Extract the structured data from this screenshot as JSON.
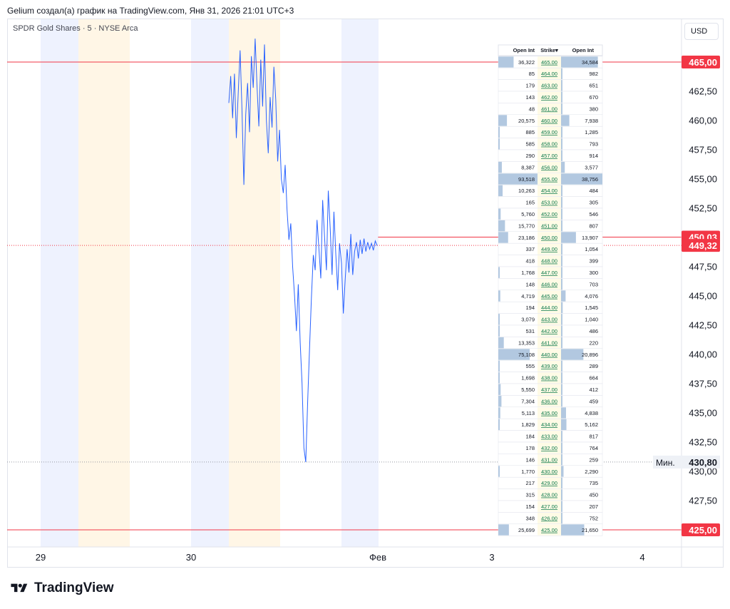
{
  "header": {
    "title": "Gelium создал(а) график на TradingView.com, Янв 31, 2026 21:01 UTC+3",
    "symbol": "SPDR Gold Shares · 5 · NYSE Arca",
    "currency": "USD",
    "logo": "TradingView"
  },
  "colors": {
    "price_line": "#2962ff",
    "level_line": "#f23645",
    "session_blue": "#eef2fe",
    "session_orange": "#fff6e6",
    "table_bar": "#b2c8e0",
    "strike_bg": "#fffbe6",
    "strike_text": "#0b7a4b"
  },
  "chart_data": {
    "type": "line",
    "x_ticks": [
      "29",
      "30",
      "Фев",
      "3",
      "4"
    ],
    "y_ticks": [
      "465,00",
      "462,50",
      "460,00",
      "457,50",
      "455,00",
      "452,50",
      "450,00",
      "447,50",
      "445,00",
      "442,50",
      "440,00",
      "437,50",
      "435,00",
      "432,50",
      "430,00",
      "427,50",
      "425,00"
    ],
    "ylim": [
      424.6,
      467.2
    ],
    "price_labels": [
      {
        "value": 465.0,
        "text": "465,00",
        "style": "red"
      },
      {
        "value": 450.03,
        "text": "450,03",
        "style": "red"
      },
      {
        "value": 449.32,
        "text": "449,32",
        "style": "red"
      },
      {
        "value": 430.8,
        "text": "430,80",
        "style": "min",
        "prefix": "Мин."
      },
      {
        "value": 425.0,
        "text": "425,00",
        "style": "red"
      }
    ],
    "levels": [
      {
        "value": 465.0,
        "style": "solid"
      },
      {
        "value": 450.03,
        "style": "solid",
        "from_x_fraction": 0.55
      },
      {
        "value": 449.32,
        "style": "dotted"
      },
      {
        "value": 430.8,
        "style": "dotted-gray"
      },
      {
        "value": 425.0,
        "style": "solid"
      }
    ],
    "series": [
      {
        "values": [
          461.5,
          463.8,
          460.2,
          464.0,
          458.5,
          462.4,
          466.0,
          461.0,
          454.5,
          460.5,
          463.2,
          459.0,
          465.5,
          462.8,
          467.0,
          463.0,
          459.5,
          465.2,
          461.2,
          466.5,
          460.0,
          457.2,
          462.0,
          459.4,
          464.6,
          461.8,
          456.5,
          459.2,
          455.0,
          453.8,
          456.2,
          452.4,
          449.8,
          451.2,
          447.5,
          445.0,
          442.0,
          446.0,
          441.0,
          437.5,
          432.0,
          430.8,
          436.0,
          440.5,
          444.8,
          448.5,
          447.2,
          451.5,
          449.0,
          446.5,
          453.2,
          450.0,
          447.2,
          454.0,
          450.8,
          446.8,
          452.2,
          448.5,
          445.5,
          449.5,
          447.8,
          443.5,
          446.4,
          449.0,
          447.0,
          450.3,
          446.8,
          448.8,
          449.6,
          448.2,
          449.8,
          448.6,
          449.9,
          448.8,
          449.6,
          449.0,
          449.5,
          448.9,
          449.7,
          449.3
        ]
      }
    ],
    "options_table": {
      "headers": [
        "Open Int",
        "Strike",
        "Open Int"
      ],
      "rows": [
        {
          "left": "36,322",
          "strike": "465.00",
          "right": "34,584",
          "lf": 0.39,
          "rf": 0.89
        },
        {
          "left": "85",
          "strike": "464.00",
          "right": "982",
          "lf": 0,
          "rf": 0.03
        },
        {
          "left": "179",
          "strike": "463.00",
          "right": "651",
          "lf": 0,
          "rf": 0.02
        },
        {
          "left": "143",
          "strike": "462.00",
          "right": "670",
          "lf": 0,
          "rf": 0.02
        },
        {
          "left": "48",
          "strike": "461.00",
          "right": "380",
          "lf": 0,
          "rf": 0.01
        },
        {
          "left": "20,575",
          "strike": "460.00",
          "right": "7,938",
          "lf": 0.22,
          "rf": 0.2
        },
        {
          "left": "885",
          "strike": "459.00",
          "right": "1,285",
          "lf": 0.01,
          "rf": 0.03
        },
        {
          "left": "585",
          "strike": "458.00",
          "right": "793",
          "lf": 0.01,
          "rf": 0.02
        },
        {
          "left": "290",
          "strike": "457.00",
          "right": "914",
          "lf": 0,
          "rf": 0.02
        },
        {
          "left": "8,387",
          "strike": "456.00",
          "right": "3,577",
          "lf": 0.09,
          "rf": 0.09
        },
        {
          "left": "93,518",
          "strike": "455.00",
          "right": "38,756",
          "lf": 1.0,
          "rf": 1.0
        },
        {
          "left": "10,263",
          "strike": "454.00",
          "right": "484",
          "lf": 0.11,
          "rf": 0.01
        },
        {
          "left": "165",
          "strike": "453.00",
          "right": "305",
          "lf": 0,
          "rf": 0.01
        },
        {
          "left": "5,760",
          "strike": "452.00",
          "right": "546",
          "lf": 0.06,
          "rf": 0.01
        },
        {
          "left": "15,770",
          "strike": "451.00",
          "right": "807",
          "lf": 0.17,
          "rf": 0.02
        },
        {
          "left": "23,186",
          "strike": "450.00",
          "right": "13,907",
          "lf": 0.25,
          "rf": 0.36
        },
        {
          "left": "337",
          "strike": "449.00",
          "right": "1,054",
          "lf": 0,
          "rf": 0.03
        },
        {
          "left": "418",
          "strike": "448.00",
          "right": "399",
          "lf": 0,
          "rf": 0.01
        },
        {
          "left": "1,768",
          "strike": "447.00",
          "right": "300",
          "lf": 0.02,
          "rf": 0.01
        },
        {
          "left": "148",
          "strike": "446.00",
          "right": "703",
          "lf": 0,
          "rf": 0.02
        },
        {
          "left": "4,719",
          "strike": "445.00",
          "right": "4,076",
          "lf": 0.05,
          "rf": 0.11
        },
        {
          "left": "194",
          "strike": "444.00",
          "right": "1,545",
          "lf": 0,
          "rf": 0.04
        },
        {
          "left": "3,079",
          "strike": "443.00",
          "right": "1,040",
          "lf": 0.03,
          "rf": 0.03
        },
        {
          "left": "531",
          "strike": "442.00",
          "right": "486",
          "lf": 0.01,
          "rf": 0.01
        },
        {
          "left": "13,353",
          "strike": "441.00",
          "right": "220",
          "lf": 0.14,
          "rf": 0.01
        },
        {
          "left": "75,108",
          "strike": "440.00",
          "right": "20,896",
          "lf": 0.8,
          "rf": 0.54
        },
        {
          "left": "555",
          "strike": "439.00",
          "right": "289",
          "lf": 0.01,
          "rf": 0.01
        },
        {
          "left": "1,698",
          "strike": "438.00",
          "right": "664",
          "lf": 0.02,
          "rf": 0.02
        },
        {
          "left": "5,550",
          "strike": "437.00",
          "right": "412",
          "lf": 0.06,
          "rf": 0.01
        },
        {
          "left": "7,304",
          "strike": "436.00",
          "right": "459",
          "lf": 0.08,
          "rf": 0.01
        },
        {
          "left": "5,113",
          "strike": "435.00",
          "right": "4,838",
          "lf": 0.05,
          "rf": 0.12
        },
        {
          "left": "1,829",
          "strike": "434.00",
          "right": "5,162",
          "lf": 0.02,
          "rf": 0.13
        },
        {
          "left": "184",
          "strike": "433.00",
          "right": "817",
          "lf": 0,
          "rf": 0.02
        },
        {
          "left": "178",
          "strike": "432.00",
          "right": "764",
          "lf": 0,
          "rf": 0.02
        },
        {
          "left": "146",
          "strike": "431.00",
          "right": "259",
          "lf": 0,
          "rf": 0.01
        },
        {
          "left": "1,770",
          "strike": "430.00",
          "right": "2,290",
          "lf": 0.02,
          "rf": 0.06
        },
        {
          "left": "217",
          "strike": "429.00",
          "right": "735",
          "lf": 0,
          "rf": 0.02
        },
        {
          "left": "315",
          "strike": "428.00",
          "right": "450",
          "lf": 0,
          "rf": 0.01
        },
        {
          "left": "154",
          "strike": "427.00",
          "right": "207",
          "lf": 0,
          "rf": 0.01
        },
        {
          "left": "348",
          "strike": "426.00",
          "right": "752",
          "lf": 0,
          "rf": 0.02
        },
        {
          "left": "25,699",
          "strike": "425.00",
          "right": "21,650",
          "lf": 0.27,
          "rf": 0.56
        }
      ]
    }
  }
}
